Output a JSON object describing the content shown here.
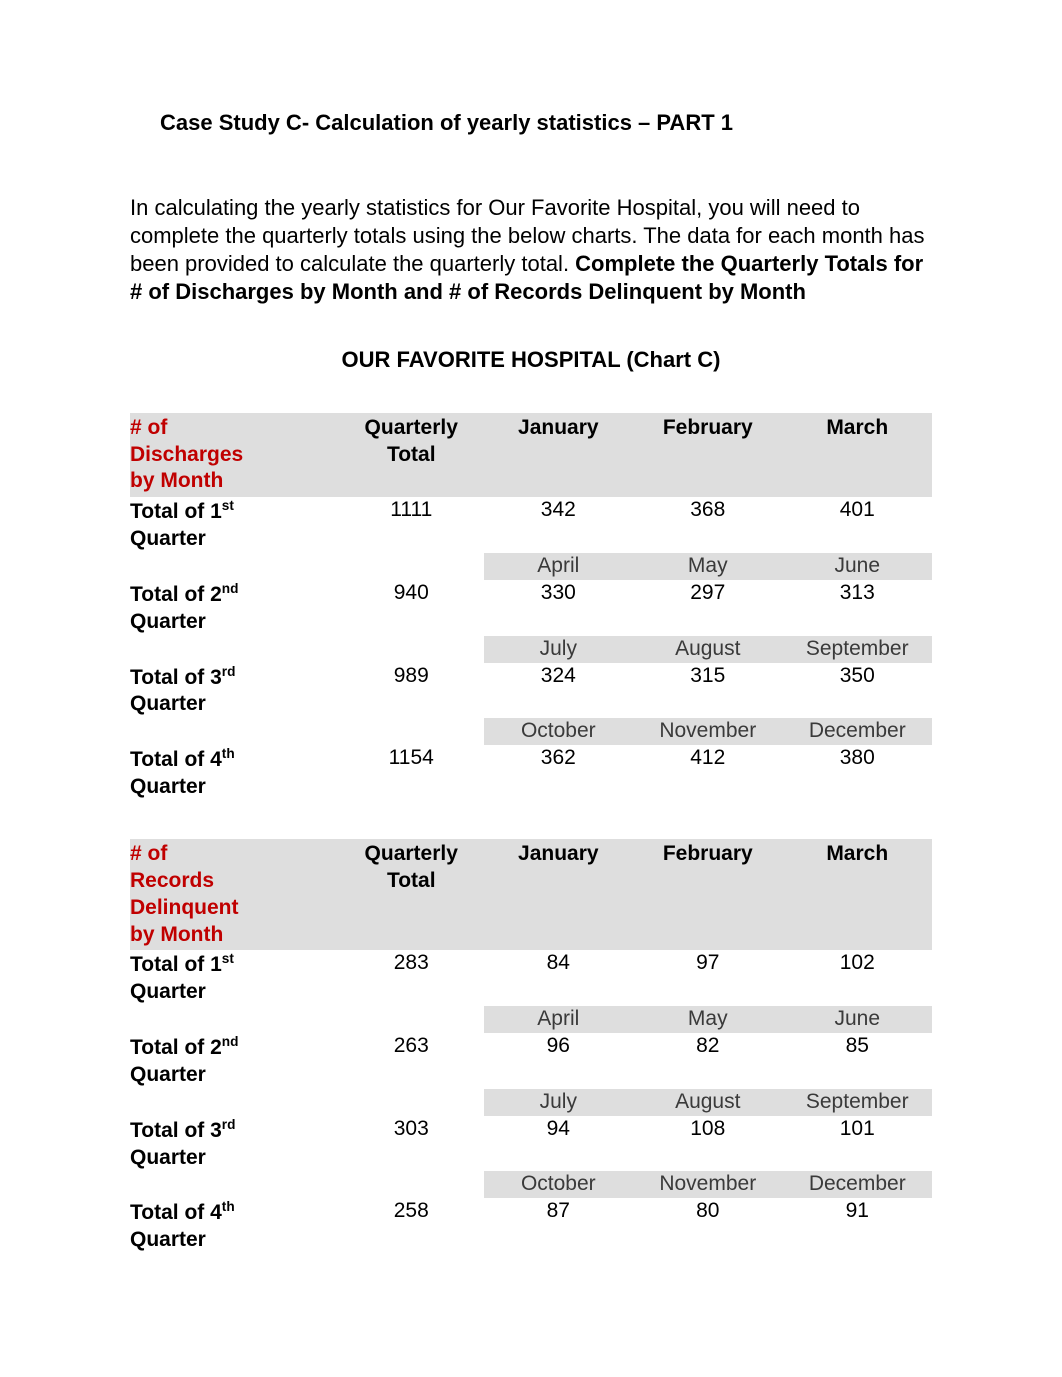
{
  "title": "Case Study C- Calculation of yearly statistics – PART 1",
  "intro_plain": "In calculating the yearly statistics for Our Favorite Hospital, you will need to complete the quarterly totals using the below charts.  The data for each month has been provided to calculate the quarterly total.  ",
  "intro_bold": "Complete the Quarterly Totals for # of Discharges by Month and # of Records Delinquent by Month",
  "chart_title": "OUR FAVORITE HOSPITAL (Chart C)",
  "colors": {
    "text": "#000000",
    "accent_red": "#c00000",
    "header_shade": "#dedede",
    "subhdr_text": "#3a3a3a",
    "background": "#ffffff"
  },
  "fonts": {
    "body_size_pt": 16,
    "family": "Verdana"
  },
  "tables": [
    {
      "label_lines": [
        "# of",
        "Discharges",
        "by Month"
      ],
      "qt_header": [
        "Quarterly",
        "Total"
      ],
      "col_widths_pct": [
        26,
        18,
        18.6,
        18.6,
        18.6
      ],
      "quarters": [
        {
          "months": [
            "January",
            "February",
            "March"
          ],
          "months_in_header": true,
          "row_label": "Total of 1",
          "row_label_sup": "st",
          "row_label_after": " Quarter",
          "qt": "1111",
          "vals": [
            "342",
            "368",
            "401"
          ]
        },
        {
          "months": [
            "April",
            "May",
            "June"
          ],
          "months_in_header": false,
          "row_label": "Total of 2",
          "row_label_sup": "nd",
          "row_label_after": " Quarter",
          "qt": "940",
          "vals": [
            "330",
            "297",
            "313"
          ]
        },
        {
          "months": [
            "July",
            "August",
            "September"
          ],
          "months_in_header": false,
          "row_label": "Total of 3",
          "row_label_sup": "rd",
          "row_label_after": " Quarter",
          "qt": "989",
          "vals": [
            "324",
            "315",
            "350"
          ]
        },
        {
          "months": [
            "October",
            "November",
            "December"
          ],
          "months_in_header": false,
          "row_label": "Total of 4",
          "row_label_sup": "th",
          "row_label_after": " Quarter",
          "qt": "1154",
          "vals": [
            "362",
            "412",
            "380"
          ]
        }
      ]
    },
    {
      "label_lines": [
        "# of",
        "Records",
        "Delinquent",
        "by Month"
      ],
      "qt_header": [
        "Quarterly",
        "Total"
      ],
      "col_widths_pct": [
        26,
        18,
        18.6,
        18.6,
        18.6
      ],
      "quarters": [
        {
          "months": [
            "January",
            "February",
            "March"
          ],
          "months_in_header": true,
          "row_label": "Total of 1",
          "row_label_sup": "st",
          "row_label_after": " Quarter",
          "qt": "283",
          "vals": [
            "84",
            "97",
            "102"
          ]
        },
        {
          "months": [
            "April",
            "May",
            "June"
          ],
          "months_in_header": false,
          "row_label": "Total of 2",
          "row_label_sup": "nd",
          "row_label_after": " Quarter",
          "qt": "263",
          "vals": [
            "96",
            "82",
            "85"
          ]
        },
        {
          "months": [
            "July",
            "August",
            "September"
          ],
          "months_in_header": false,
          "row_label": "Total of 3",
          "row_label_sup": "rd",
          "row_label_after": " Quarter",
          "qt": "303",
          "vals": [
            "94",
            "108",
            "101"
          ]
        },
        {
          "months": [
            "October",
            "November",
            "December"
          ],
          "months_in_header": false,
          "row_label": "Total of 4",
          "row_label_sup": "th",
          "row_label_after": " Quarter",
          "qt": "258",
          "vals": [
            "87",
            "80",
            "91"
          ]
        }
      ]
    }
  ]
}
